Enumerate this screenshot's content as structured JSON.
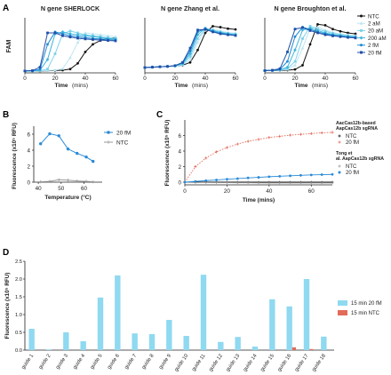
{
  "panels": {
    "A": "A",
    "B": "B",
    "C": "C",
    "D": "D"
  },
  "colors": {
    "ntc": "#111111",
    "aM2": "#bfe6f2",
    "aM20": "#7fd3ea",
    "aM200": "#3fb6dc",
    "fM2": "#1e88d2",
    "fM20": "#1f4fa8",
    "blue": "#2a8ad6",
    "gray": "#9a9a9a",
    "red": "#e36b5a",
    "cyan": "#8fd9f1"
  },
  "chart_data": [
    {
      "id": "A1",
      "type": "line",
      "title": "N gene SHERLOCK",
      "ylabel": "FAM",
      "xlabel": "Time",
      "xlabel_unit": "(mins)",
      "xlim": [
        0,
        60
      ],
      "xticks": [
        0,
        20,
        40,
        60
      ],
      "x": [
        0,
        5,
        10,
        15,
        20,
        25,
        30,
        35,
        40,
        45,
        50,
        55,
        60
      ],
      "series": [
        {
          "name": "NTC",
          "values": [
            10,
            10,
            10,
            11,
            12,
            14,
            20,
            50,
            110,
            150,
            170,
            180,
            185
          ]
        },
        {
          "name": "2 aM",
          "values": [
            10,
            10,
            11,
            12,
            14,
            22,
            80,
            160,
            210,
            205,
            200,
            195,
            190
          ]
        },
        {
          "name": "20 aM",
          "values": [
            10,
            10,
            12,
            20,
            100,
            205,
            220,
            210,
            200,
            195,
            190,
            185,
            180
          ]
        },
        {
          "name": "200 aM",
          "values": [
            10,
            10,
            14,
            70,
            205,
            215,
            205,
            200,
            195,
            190,
            185,
            180,
            178
          ]
        },
        {
          "name": "2 fM",
          "values": [
            10,
            11,
            18,
            150,
            215,
            205,
            195,
            190,
            185,
            180,
            178,
            175,
            172
          ]
        },
        {
          "name": "20 fM",
          "values": [
            10,
            12,
            30,
            210,
            210,
            195,
            188,
            182,
            178,
            175,
            172,
            170,
            168
          ]
        }
      ]
    },
    {
      "id": "A2",
      "type": "line",
      "title": "N gene Zhang et al.",
      "xlabel": "Time",
      "xlabel_unit": "(mins)",
      "xlim": [
        0,
        60
      ],
      "xticks": [
        0,
        20,
        40,
        60
      ],
      "x": [
        0,
        5,
        10,
        15,
        20,
        25,
        30,
        35,
        40,
        45,
        50,
        55,
        60
      ],
      "series": [
        {
          "name": "NTC",
          "values": [
            28,
            30,
            32,
            34,
            36,
            40,
            55,
            120,
            210,
            245,
            240,
            232,
            228
          ]
        },
        {
          "name": "2 aM",
          "values": [
            28,
            30,
            32,
            34,
            36,
            42,
            70,
            160,
            225,
            230,
            220,
            212,
            208
          ]
        },
        {
          "name": "20 aM",
          "values": [
            28,
            30,
            32,
            34,
            36,
            45,
            85,
            180,
            230,
            225,
            215,
            208,
            204
          ]
        },
        {
          "name": "200 aM",
          "values": [
            28,
            30,
            32,
            34,
            37,
            48,
            100,
            200,
            235,
            222,
            212,
            205,
            200
          ]
        },
        {
          "name": "2 fM",
          "values": [
            28,
            30,
            32,
            34,
            38,
            52,
            115,
            215,
            232,
            218,
            208,
            202,
            198
          ]
        },
        {
          "name": "20 fM",
          "values": [
            28,
            30,
            32,
            34,
            38,
            55,
            130,
            225,
            228,
            215,
            205,
            200,
            196
          ]
        }
      ]
    },
    {
      "id": "A3",
      "type": "line",
      "title": "N gene Broughton et al.",
      "xlabel": "Time",
      "xlabel_unit": "(mins)",
      "xlim": [
        0,
        60
      ],
      "xticks": [
        0,
        20,
        40,
        60
      ],
      "x": [
        0,
        5,
        10,
        15,
        20,
        25,
        30,
        35,
        40,
        45,
        50,
        55,
        60
      ],
      "series": [
        {
          "name": "NTC",
          "values": [
            12,
            12,
            13,
            14,
            18,
            40,
            150,
            255,
            250,
            230,
            218,
            210,
            205
          ]
        },
        {
          "name": "2 aM",
          "values": [
            12,
            13,
            14,
            18,
            40,
            130,
            235,
            240,
            225,
            212,
            205,
            200,
            196
          ]
        },
        {
          "name": "20 aM",
          "values": [
            12,
            13,
            15,
            22,
            60,
            180,
            245,
            230,
            218,
            208,
            200,
            195,
            192
          ]
        },
        {
          "name": "200 aM",
          "values": [
            12,
            13,
            16,
            30,
            120,
            225,
            235,
            222,
            210,
            202,
            196,
            192,
            188
          ]
        },
        {
          "name": "2 fM",
          "values": [
            12,
            13,
            18,
            60,
            190,
            240,
            228,
            215,
            205,
            198,
            192,
            188,
            185
          ]
        },
        {
          "name": "20 fM",
          "values": [
            12,
            14,
            22,
            110,
            230,
            238,
            222,
            210,
            200,
            194,
            190,
            186,
            183
          ]
        }
      ]
    },
    {
      "id": "B",
      "type": "line",
      "ylabel": "Fluorescence (x10⁵ RFU)",
      "xlabel": "Temperature (°C)",
      "xlim": [
        38,
        68
      ],
      "ylim": [
        0,
        7
      ],
      "xticks": [
        40,
        50,
        60
      ],
      "yticks": [
        0,
        2,
        4,
        6
      ],
      "legend_position": "top-right",
      "x": [
        41,
        45,
        49,
        53,
        57,
        61,
        64
      ],
      "series": [
        {
          "name": "20 fM",
          "values": [
            4.8,
            6.05,
            5.8,
            4.15,
            3.6,
            3.15,
            2.6
          ]
        },
        {
          "name": "NTC",
          "values": [
            0.05,
            0.1,
            0.3,
            0.25,
            0.15,
            0.1,
            0.05
          ]
        }
      ]
    },
    {
      "id": "C",
      "type": "line",
      "ylabel": "Fluorescence (x10⁵ RFU)",
      "xlabel": "Time (mins)",
      "xlim": [
        0,
        70
      ],
      "ylim": [
        0,
        8
      ],
      "xticks": [
        0,
        20,
        40,
        60
      ],
      "yticks": [
        0,
        2,
        4,
        6
      ],
      "legend_position": "right",
      "legend_groups": [
        "AacCas12b-based AapCas12b sgRNA",
        "Tong et al. AapCas12b sgRNA"
      ],
      "x": [
        0,
        5,
        10,
        15,
        20,
        25,
        30,
        35,
        40,
        45,
        50,
        55,
        60,
        65,
        70
      ],
      "series": [
        {
          "name": "NTC",
          "group": 0,
          "values": [
            0,
            0,
            0,
            0,
            0,
            0,
            0,
            0,
            0,
            0,
            0,
            0,
            0,
            0,
            0
          ]
        },
        {
          "name": "20 fM",
          "group": 0,
          "values": [
            0,
            2.0,
            3.1,
            3.9,
            4.45,
            4.9,
            5.25,
            5.5,
            5.75,
            5.9,
            6.05,
            6.15,
            6.25,
            6.35,
            6.4
          ]
        },
        {
          "name": "NTC",
          "group": 1,
          "values": [
            0,
            -0.05,
            -0.05,
            -0.06,
            -0.07,
            -0.08,
            -0.08,
            -0.09,
            -0.1,
            -0.1,
            -0.1,
            -0.1,
            -0.1,
            -0.1,
            -0.1
          ]
        },
        {
          "name": "20 fM",
          "group": 1,
          "values": [
            0,
            0.1,
            0.2,
            0.28,
            0.38,
            0.46,
            0.55,
            0.62,
            0.7,
            0.76,
            0.82,
            0.88,
            0.93,
            0.97,
            1.0
          ]
        }
      ]
    },
    {
      "id": "D",
      "type": "bar",
      "ylabel": "Fluorescence (x10⁵ RFU)",
      "ylim": [
        0,
        2.5
      ],
      "yticks": [
        0,
        0.5,
        1.0,
        1.5,
        2.0,
        2.5
      ],
      "legend_position": "right",
      "categories": [
        "guide 1",
        "guide 2",
        "guide 3",
        "guide 4",
        "guide 5",
        "guide 6",
        "guide 7",
        "guide 8",
        "guide 9",
        "guide 10",
        "guide 11",
        "guide 12",
        "guide 13",
        "guide 14",
        "guide 15",
        "guide 16",
        "guide 17",
        "guide 18"
      ],
      "series": [
        {
          "name": "15 min 20 fM",
          "values": [
            0.6,
            0.02,
            0.5,
            0.25,
            1.48,
            2.1,
            0.47,
            0.45,
            0.85,
            0.4,
            2.12,
            0.23,
            0.37,
            0.1,
            1.43,
            1.23,
            2.0,
            0.38
          ]
        },
        {
          "name": "15 min NTC",
          "values": [
            0,
            0,
            0,
            0,
            0,
            0,
            0,
            0,
            0,
            0,
            0,
            0,
            0,
            0,
            0,
            0.08,
            0.03,
            0
          ]
        }
      ]
    }
  ]
}
